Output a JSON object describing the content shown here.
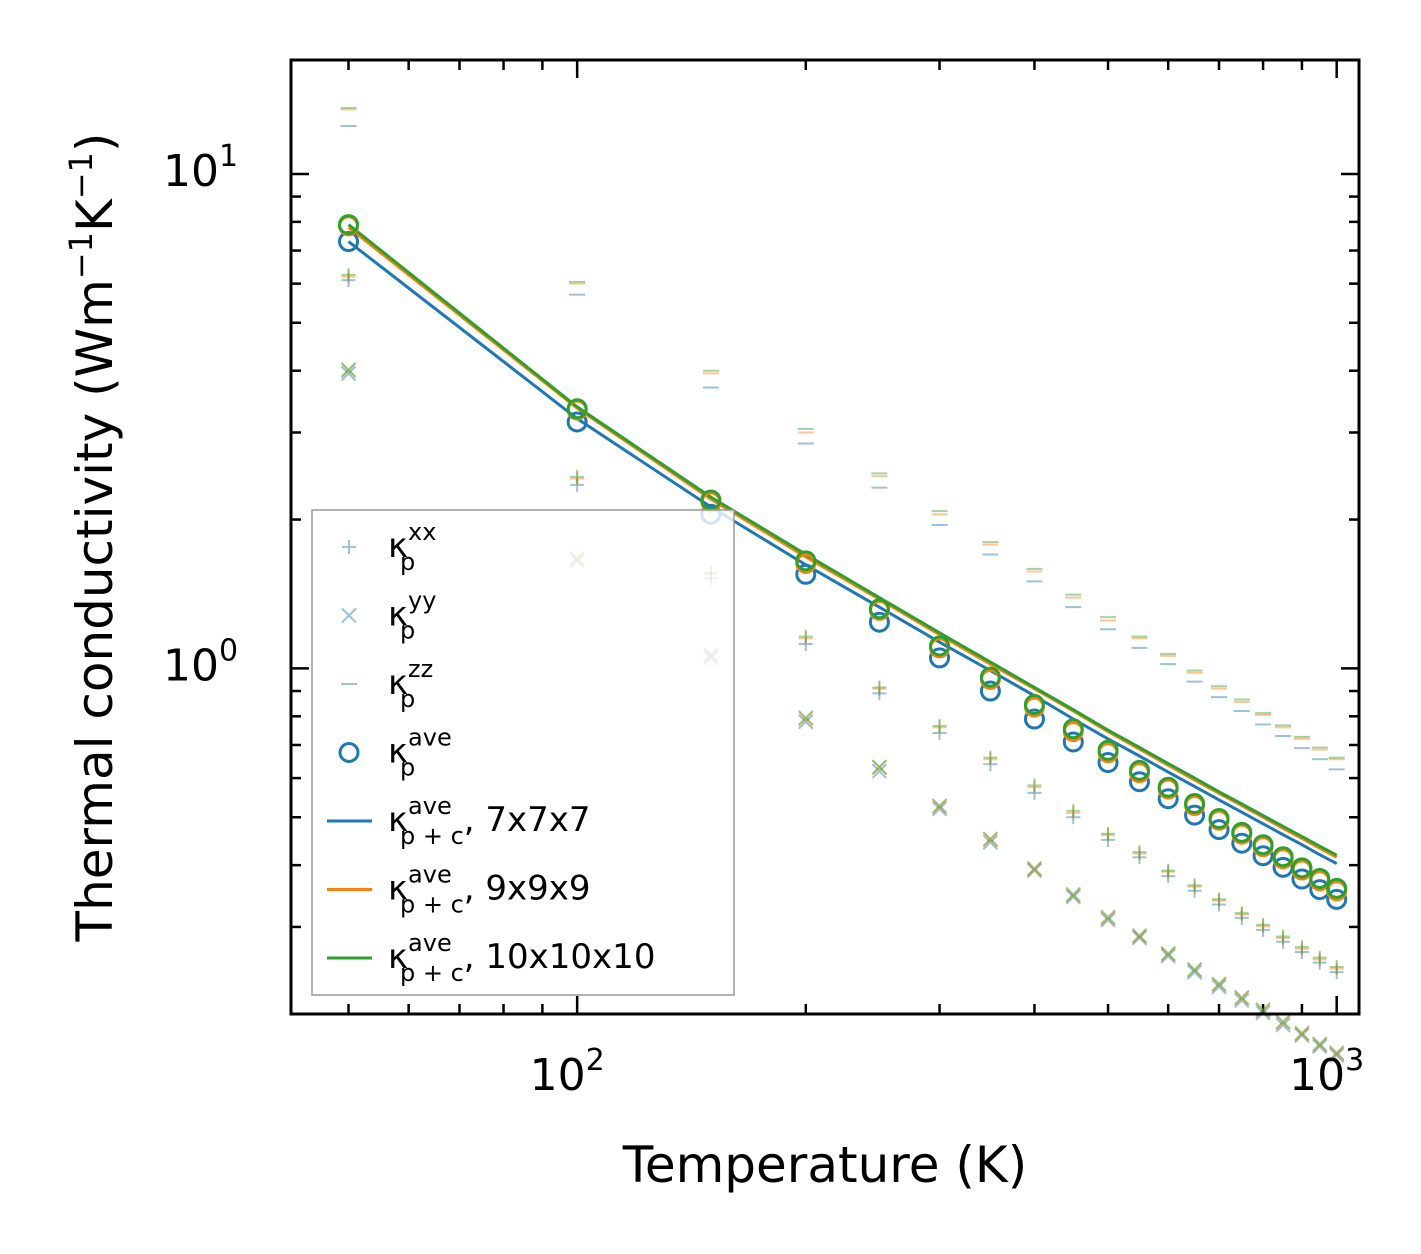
{
  "chart_data": {
    "type": "scatter",
    "xscale": "log",
    "yscale": "log",
    "xlabel": "Temperature (K)",
    "ylabel": {
      "text": "Thermal conductivity (Wm",
      "sup1": "−1",
      "mid": "K",
      "sup2": "−1",
      "end": ")"
    },
    "xlim": [
      42,
      1070
    ],
    "ylim": [
      0.2,
      17
    ],
    "xticks": [
      {
        "base": "10",
        "exp": "2",
        "value": 100
      },
      {
        "base": "10",
        "exp": "3",
        "value": 1000
      }
    ],
    "yticks": [
      {
        "base": "10",
        "exp": "0",
        "value": 1
      },
      {
        "base": "10",
        "exp": "1",
        "value": 10
      }
    ],
    "x": [
      50,
      100,
      150,
      200,
      250,
      300,
      350,
      400,
      450,
      500,
      550,
      600,
      650,
      700,
      750,
      800,
      850,
      900,
      950,
      1000
    ],
    "series": [
      {
        "name": "kxx",
        "marker": "plus",
        "color": "#1f77b4",
        "alpha": 0.45,
        "values": [
          6.1,
          2.35,
          1.52,
          1.12,
          0.89,
          0.74,
          0.64,
          0.56,
          0.5,
          0.45,
          0.415,
          0.38,
          0.355,
          0.333,
          0.313,
          0.296,
          0.28,
          0.267,
          0.254,
          0.243
        ]
      },
      {
        "name": "kyy",
        "marker": "x",
        "color": "#1f77b4",
        "alpha": 0.45,
        "values": [
          3.95,
          1.65,
          1.05,
          0.78,
          0.62,
          0.52,
          0.445,
          0.39,
          0.345,
          0.31,
          0.285,
          0.262,
          0.243,
          0.227,
          0.213,
          0.201,
          0.19,
          0.181,
          0.172,
          0.165
        ]
      },
      {
        "name": "kzz",
        "marker": "dash",
        "color": "#1f77b4",
        "alpha": 0.45,
        "values": [
          12.5,
          5.7,
          3.7,
          2.85,
          2.32,
          1.95,
          1.7,
          1.5,
          1.33,
          1.2,
          1.1,
          1.02,
          0.94,
          0.875,
          0.82,
          0.77,
          0.73,
          0.69,
          0.655,
          0.625
        ]
      },
      {
        "name": "kxx-9",
        "marker": "plus",
        "color": "#ff7f0e",
        "alpha": 0.45,
        "values": [
          6.2,
          2.42,
          1.55,
          1.15,
          0.91,
          0.76,
          0.655,
          0.575,
          0.51,
          0.46,
          0.422,
          0.388,
          0.362,
          0.339,
          0.318,
          0.301,
          0.285,
          0.271,
          0.258,
          0.247
        ]
      },
      {
        "name": "kyy-9",
        "marker": "x",
        "color": "#ff7f0e",
        "alpha": 0.45,
        "values": [
          4.0,
          1.66,
          1.06,
          0.79,
          0.63,
          0.525,
          0.45,
          0.392,
          0.347,
          0.312,
          0.287,
          0.264,
          0.245,
          0.229,
          0.215,
          0.203,
          0.192,
          0.182,
          0.173,
          0.166
        ]
      },
      {
        "name": "kzz-9",
        "marker": "dash",
        "color": "#ff7f0e",
        "alpha": 0.45,
        "values": [
          13.5,
          6.0,
          3.95,
          3.0,
          2.45,
          2.05,
          1.78,
          1.57,
          1.39,
          1.25,
          1.15,
          1.06,
          0.98,
          0.91,
          0.855,
          0.805,
          0.76,
          0.72,
          0.685,
          0.655
        ]
      },
      {
        "name": "kxx-10",
        "marker": "plus",
        "color": "#2ca02c",
        "alpha": 0.45,
        "values": [
          6.25,
          2.44,
          1.56,
          1.16,
          0.915,
          0.765,
          0.66,
          0.58,
          0.515,
          0.463,
          0.425,
          0.39,
          0.364,
          0.341,
          0.32,
          0.303,
          0.287,
          0.273,
          0.26,
          0.249
        ]
      },
      {
        "name": "kyy-10",
        "marker": "x",
        "color": "#2ca02c",
        "alpha": 0.45,
        "values": [
          4.02,
          1.67,
          1.065,
          0.795,
          0.632,
          0.527,
          0.452,
          0.394,
          0.349,
          0.314,
          0.288,
          0.265,
          0.246,
          0.23,
          0.216,
          0.204,
          0.193,
          0.183,
          0.174,
          0.167
        ]
      },
      {
        "name": "kzz-10",
        "marker": "dash",
        "color": "#2ca02c",
        "alpha": 0.45,
        "values": [
          13.6,
          6.05,
          4.0,
          3.05,
          2.48,
          2.08,
          1.8,
          1.59,
          1.41,
          1.27,
          1.16,
          1.07,
          0.99,
          0.92,
          0.865,
          0.812,
          0.767,
          0.727,
          0.692,
          0.66
        ]
      },
      {
        "name": "kave-7",
        "marker": "circle",
        "color": "#1f77b4",
        "alpha": 1,
        "values": [
          7.3,
          3.15,
          2.05,
          1.55,
          1.24,
          1.05,
          0.9,
          0.79,
          0.71,
          0.645,
          0.59,
          0.545,
          0.505,
          0.472,
          0.443,
          0.418,
          0.396,
          0.375,
          0.357,
          0.341
        ]
      },
      {
        "name": "kave-9",
        "marker": "circle",
        "color": "#ff7f0e",
        "alpha": 1,
        "values": [
          7.85,
          3.33,
          2.17,
          1.63,
          1.31,
          1.1,
          0.95,
          0.835,
          0.745,
          0.675,
          0.615,
          0.57,
          0.528,
          0.493,
          0.462,
          0.436,
          0.412,
          0.391,
          0.372,
          0.355
        ]
      },
      {
        "name": "kave-10",
        "marker": "circle",
        "color": "#2ca02c",
        "alpha": 1,
        "values": [
          7.9,
          3.35,
          2.19,
          1.65,
          1.32,
          1.11,
          0.96,
          0.845,
          0.755,
          0.683,
          0.622,
          0.575,
          0.533,
          0.497,
          0.466,
          0.44,
          0.416,
          0.395,
          0.376,
          0.359
        ]
      },
      {
        "name": "kpc-7x7x7",
        "marker": "line",
        "color": "#1f77b4",
        "alpha": 1,
        "values": [
          7.3,
          3.2,
          2.12,
          1.62,
          1.33,
          1.13,
          0.99,
          0.88,
          0.79,
          0.72,
          0.665,
          0.617,
          0.577,
          0.542,
          0.512,
          0.485,
          0.461,
          0.44,
          0.42,
          0.403
        ]
      },
      {
        "name": "kpc-9x9x9",
        "marker": "line",
        "color": "#ff7f0e",
        "alpha": 1,
        "values": [
          7.8,
          3.36,
          2.2,
          1.68,
          1.38,
          1.17,
          1.02,
          0.91,
          0.82,
          0.745,
          0.687,
          0.637,
          0.595,
          0.559,
          0.528,
          0.5,
          0.475,
          0.453,
          0.433,
          0.415
        ]
      },
      {
        "name": "kpc-10x10x10",
        "marker": "line",
        "color": "#2ca02c",
        "alpha": 1,
        "values": [
          7.9,
          3.38,
          2.22,
          1.7,
          1.39,
          1.18,
          1.03,
          0.915,
          0.825,
          0.75,
          0.692,
          0.642,
          0.6,
          0.563,
          0.532,
          0.504,
          0.479,
          0.457,
          0.437,
          0.419
        ]
      }
    ],
    "legend": {
      "position": "lower-left",
      "entries": [
        {
          "marker": "plus",
          "color": "#1f77b4",
          "sym": "κ",
          "sub": "p",
          "sup": "xx",
          "suffix": ""
        },
        {
          "marker": "x",
          "color": "#1f77b4",
          "sym": "κ",
          "sub": "p",
          "sup": "yy",
          "suffix": ""
        },
        {
          "marker": "dash",
          "color": "#1f77b4",
          "sym": "κ",
          "sub": "p",
          "sup": "zz",
          "suffix": ""
        },
        {
          "marker": "circle",
          "color": "#1f77b4",
          "sym": "κ",
          "sub": "p",
          "sup": "ave",
          "suffix": ""
        },
        {
          "marker": "line",
          "color": "#1f77b4",
          "sym": "κ",
          "sub": "p + c",
          "sup": "ave",
          "suffix": ", 7x7x7"
        },
        {
          "marker": "line",
          "color": "#ff7f0e",
          "sym": "κ",
          "sub": "p + c",
          "sup": "ave",
          "suffix": ", 9x9x9"
        },
        {
          "marker": "line",
          "color": "#2ca02c",
          "sym": "κ",
          "sub": "p + c",
          "sup": "ave",
          "suffix": ", 10x10x10"
        }
      ]
    }
  }
}
